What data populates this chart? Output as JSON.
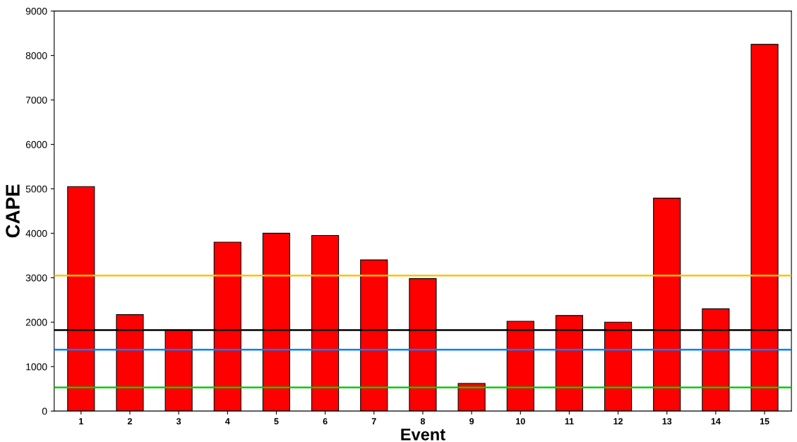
{
  "chart_data": {
    "type": "bar",
    "xlabel": "Event",
    "ylabel": "CAPE",
    "categories": [
      "1",
      "2",
      "3",
      "4",
      "5",
      "6",
      "7",
      "8",
      "9",
      "10",
      "11",
      "12",
      "13",
      "14",
      "15"
    ],
    "values": [
      5050,
      2170,
      1825,
      3800,
      4000,
      3950,
      3400,
      2980,
      620,
      2020,
      2150,
      2000,
      4790,
      2300,
      8250
    ],
    "color": "#ff0000",
    "ylim": [
      0,
      9000
    ],
    "yticks": [
      0,
      1000,
      2000,
      3000,
      4000,
      5000,
      6000,
      7000,
      8000,
      9000
    ],
    "grid": false,
    "legend": false,
    "ref_lines": [
      {
        "axis": "y",
        "value": 3050,
        "color": "#ffc000"
      },
      {
        "axis": "y",
        "value": 1820,
        "color": "#000000"
      },
      {
        "axis": "y",
        "value": 1380,
        "color": "#0080ff"
      },
      {
        "axis": "y",
        "value": 530,
        "color": "#00cc00"
      }
    ]
  }
}
